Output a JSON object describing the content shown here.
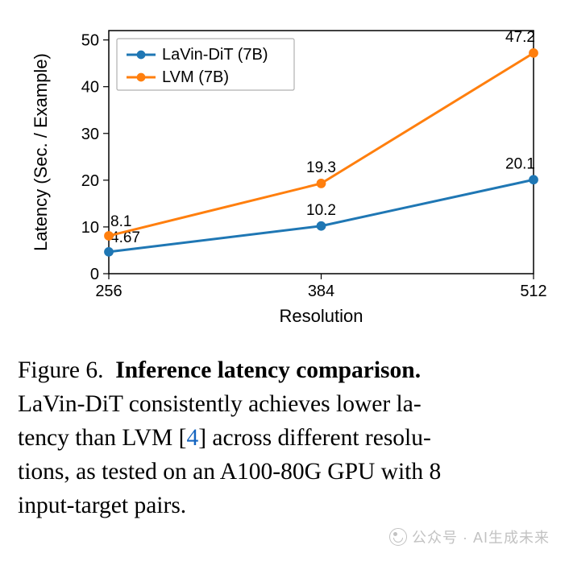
{
  "chart": {
    "type": "line",
    "background_color": "#ffffff",
    "title": null,
    "xlabel": "Resolution",
    "ylabel": "Latency (Sec. / Example)",
    "label_fontsize": 22,
    "tick_fontsize": 20,
    "axis_color": "#000000",
    "grid": false,
    "xlim": [
      256,
      512
    ],
    "ylim": [
      0,
      52
    ],
    "xticks": [
      256,
      384,
      512
    ],
    "yticks": [
      0,
      10,
      20,
      30,
      40,
      50
    ],
    "series": [
      {
        "name": "LaVin-DiT (7B)",
        "color": "#1f77b4",
        "linewidth": 3,
        "marker": "circle",
        "marker_size": 7,
        "x": [
          256,
          384,
          512
        ],
        "y": [
          4.67,
          10.2,
          20.1
        ],
        "point_labels": [
          "4.67",
          "10.2",
          "20.1"
        ],
        "label_fontsize": 19,
        "label_offset_y": [
          -12,
          -14,
          -14
        ]
      },
      {
        "name": "LVM (7B)",
        "color": "#ff7f0e",
        "linewidth": 3,
        "marker": "circle",
        "marker_size": 7,
        "x": [
          256,
          384,
          512
        ],
        "y": [
          8.1,
          19.3,
          47.2
        ],
        "point_labels": [
          "8.1",
          "19.3",
          "47.2"
        ],
        "label_fontsize": 19,
        "label_offset_y": [
          -12,
          -14,
          -14
        ]
      }
    ],
    "legend": {
      "position": "upper-left",
      "fontsize": 20,
      "border_color": "#b0b0b0",
      "background": "#ffffff",
      "items": [
        "LaVin-DiT (7B)",
        "LVM (7B)"
      ]
    }
  },
  "caption": {
    "figure_label": "Figure 6.",
    "bold_title": "Inference latency comparison.",
    "line1": "LaVin-DiT consistently achieves lower la-",
    "line2_pre": "tency than LVM [",
    "citation": "4",
    "line2_post": "] across different resolu-",
    "line3": "tions, as tested on an A100-80G GPU with 8",
    "line4": "input-target pairs."
  },
  "watermark": "公众号 · AI生成未来"
}
